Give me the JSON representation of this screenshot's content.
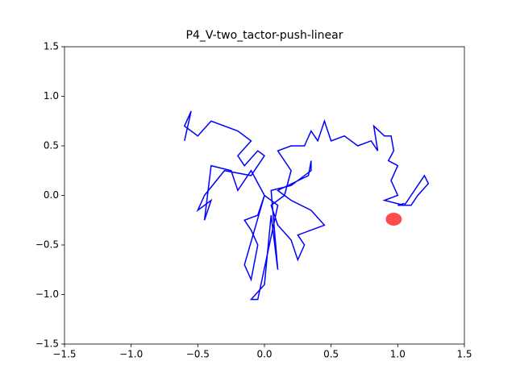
{
  "chart_data": {
    "type": "line",
    "title": "P4_V-two_tactor-push-linear",
    "xlim": [
      -1.5,
      1.5
    ],
    "ylim": [
      -1.5,
      1.5
    ],
    "xticks": [
      {
        "value": -1.5,
        "label": "−1.5"
      },
      {
        "value": -1.0,
        "label": "−1.0"
      },
      {
        "value": -0.5,
        "label": "−0.5"
      },
      {
        "value": 0.0,
        "label": "0.0"
      },
      0.5,
      {
        "value": 1.0,
        "label": "1.0"
      },
      1.5
    ],
    "yticks": [
      {
        "value": -1.5,
        "label": "−1.5"
      },
      {
        "value": -1.0,
        "label": "−1.0"
      },
      {
        "value": -0.5,
        "label": "−0.5"
      },
      {
        "value": 0.0,
        "label": "0.0"
      },
      0.5,
      {
        "value": 1.0,
        "label": "1.0"
      },
      1.5
    ],
    "series": [
      {
        "type": "line",
        "color": "#0000ff",
        "x": [
          -0.6,
          -0.55,
          -0.6,
          -0.5,
          -0.4,
          -0.2,
          -0.1,
          -0.2,
          -0.15,
          -0.05,
          0.0,
          -0.1,
          -0.3,
          -0.45,
          -0.5,
          -0.4,
          -0.45,
          -0.4,
          -0.25,
          -0.2,
          -0.1,
          0.0,
          -0.05,
          -0.15,
          -0.1,
          -0.05,
          -0.1,
          -0.15,
          0.0,
          0.1,
          -0.05,
          -0.1,
          0.0,
          0.05,
          0.1,
          0.05,
          0.2,
          0.35,
          0.35,
          0.33,
          0.1,
          0.2,
          0.35,
          0.45,
          0.35,
          0.25,
          0.3,
          0.25,
          0.2,
          0.1,
          0.05,
          0.15,
          0.2,
          0.1,
          0.2,
          0.3,
          0.35,
          0.4,
          0.45,
          0.5,
          0.6,
          0.7,
          0.8,
          0.85,
          0.82,
          0.9,
          0.95,
          0.97,
          0.93,
          1.0,
          0.95,
          1.0,
          0.9,
          1.05,
          1.1,
          1.2,
          1.23,
          1.15,
          1.1,
          1.0,
          1.05
        ],
        "values": [
          0.55,
          0.85,
          0.7,
          0.6,
          0.75,
          0.65,
          0.55,
          0.4,
          0.3,
          0.45,
          0.4,
          0.2,
          0.25,
          0.0,
          -0.15,
          -0.05,
          -0.25,
          0.3,
          0.25,
          0.05,
          0.25,
          0.0,
          -0.2,
          -0.25,
          -0.35,
          -0.5,
          -0.85,
          -0.7,
          0.0,
          -0.1,
          -1.05,
          -1.05,
          -0.9,
          -0.2,
          -0.75,
          0.05,
          0.1,
          0.25,
          0.35,
          0.2,
          0.05,
          -0.05,
          -0.15,
          -0.3,
          -0.35,
          -0.4,
          -0.5,
          -0.65,
          -0.45,
          -0.3,
          -0.1,
          0.0,
          0.25,
          0.45,
          0.5,
          0.5,
          0.65,
          0.55,
          0.75,
          0.55,
          0.6,
          0.5,
          0.55,
          0.45,
          0.7,
          0.6,
          0.6,
          0.45,
          0.35,
          0.3,
          0.15,
          0.0,
          -0.05,
          -0.1,
          0.0,
          0.2,
          0.12,
          0.0,
          -0.1,
          -0.1,
          -0.08
        ]
      },
      {
        "type": "scatter",
        "color": "#ff0000",
        "x": [
          0.97
        ],
        "values": [
          -0.24
        ]
      }
    ]
  }
}
